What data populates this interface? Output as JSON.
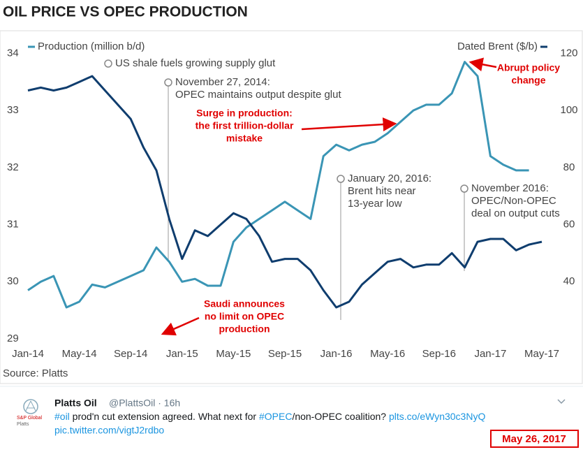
{
  "chart_data": {
    "type": "line",
    "title": "OIL PRICE VS OPEC PRODUCTION",
    "source": "Source: Platts",
    "x": [
      "2014-01",
      "2014-02",
      "2014-03",
      "2014-04",
      "2014-05",
      "2014-06",
      "2014-07",
      "2014-08",
      "2014-09",
      "2014-10",
      "2014-11",
      "2014-12",
      "2015-01",
      "2015-02",
      "2015-03",
      "2015-04",
      "2015-05",
      "2015-06",
      "2015-07",
      "2015-08",
      "2015-09",
      "2015-10",
      "2015-11",
      "2015-12",
      "2016-01",
      "2016-02",
      "2016-03",
      "2016-04",
      "2016-05",
      "2016-06",
      "2016-07",
      "2016-08",
      "2016-09",
      "2016-10",
      "2016-11",
      "2016-12",
      "2017-01",
      "2017-02",
      "2017-03",
      "2017-04",
      "2017-05"
    ],
    "series": [
      {
        "name": "Production (million b/d)",
        "color": "#3a95b5",
        "values": [
          29.85,
          30.0,
          30.1,
          29.55,
          29.65,
          29.95,
          29.9,
          30.0,
          30.1,
          30.2,
          30.6,
          30.35,
          30.0,
          30.05,
          29.93,
          29.93,
          30.7,
          30.95,
          31.1,
          31.25,
          31.4,
          31.25,
          31.1,
          32.2,
          32.4,
          32.3,
          32.4,
          32.45,
          32.6,
          32.8,
          33.0,
          33.1,
          33.1,
          33.3,
          33.85,
          33.6,
          32.2,
          32.05,
          31.95,
          31.95,
          null
        ]
      },
      {
        "name": "Dated Brent ($/b)",
        "color": "#0f3d6e",
        "axis": "y2",
        "values": [
          107,
          108,
          107,
          108,
          110,
          112,
          107,
          102,
          97,
          87,
          79,
          62,
          48,
          58,
          56,
          60,
          64,
          62,
          56,
          47,
          48,
          48,
          44,
          37,
          31,
          33,
          39,
          43,
          47,
          48,
          45,
          46,
          46,
          50,
          45,
          54,
          55,
          55,
          51,
          53,
          54
        ]
      }
    ],
    "xlim": [
      "2014-01",
      "2017-05"
    ],
    "xticks": [
      {
        "value": "2014-01",
        "label": "Jan-14"
      },
      {
        "value": "2014-05",
        "label": "May-14"
      },
      {
        "value": "2014-09",
        "label": "Sep-14"
      },
      {
        "value": "2015-01",
        "label": "Jan-15"
      },
      {
        "value": "2015-05",
        "label": "May-15"
      },
      {
        "value": "2015-09",
        "label": "Sep-15"
      },
      {
        "value": "2016-01",
        "label": "Jan-16"
      },
      {
        "value": "2016-05",
        "label": "May-16"
      },
      {
        "value": "2016-09",
        "label": "Sep-16"
      },
      {
        "value": "2017-01",
        "label": "Jan-17"
      },
      {
        "value": "2017-05",
        "label": "May-17"
      }
    ],
    "ylim": [
      29,
      34.2
    ],
    "yticks": [
      29,
      30,
      31,
      32,
      33,
      34
    ],
    "y2lim": [
      20,
      124
    ],
    "y2ticks": [
      40,
      60,
      80,
      100,
      120
    ],
    "annotations": [
      {
        "lines": [
          "US shale fuels growing supply glut"
        ]
      },
      {
        "lines": [
          "November 27, 2014:",
          "OPEC maintains output despite glut"
        ]
      },
      {
        "lines": [
          "January 20, 2016:",
          "Brent hits near",
          "13-year low"
        ]
      },
      {
        "lines": [
          "November 2016:",
          "OPEC/Non-OPEC",
          "deal on output cuts"
        ]
      }
    ],
    "callouts": [
      {
        "lines": [
          "Abrupt policy",
          "change"
        ]
      },
      {
        "lines": [
          "Surge in production:",
          "the first trillion-dollar",
          "mistake"
        ]
      },
      {
        "lines": [
          "Saudi announces",
          "no limit on OPEC",
          "production"
        ]
      }
    ]
  },
  "tweet": {
    "logo_lines": [
      "S&P Global",
      "Platts"
    ],
    "name": "Platts Oil",
    "handle": "@PlattsOil · 16h",
    "text_parts": [
      "#oil",
      " prod'n cut extension agreed. What next for ",
      "#OPEC",
      "/non-OPEC coalition? ",
      "plts.co/eWyn30c3NyQ"
    ],
    "pic_link": "pic.twitter.com/vigtJ2rdbo",
    "date": "May 26, 2017"
  }
}
